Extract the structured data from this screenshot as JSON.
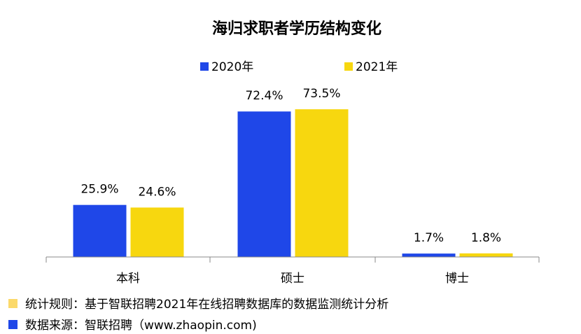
{
  "chart_data": {
    "type": "bar",
    "title": "海归求职者学历结构变化",
    "categories": [
      "本科",
      "硕士",
      "博士"
    ],
    "series": [
      {
        "name": "2020年",
        "color": "#1f47e8",
        "values": [
          25.9,
          72.4,
          1.7
        ],
        "labels": [
          "25.9%",
          "72.4%",
          "1.7%"
        ]
      },
      {
        "name": "2021年",
        "color": "#f7d70f",
        "values": [
          24.6,
          73.5,
          1.8
        ],
        "labels": [
          "24.6%",
          "73.5%",
          "1.8%"
        ]
      }
    ],
    "ylim": [
      0,
      80
    ],
    "grid": false,
    "legend_position": "top"
  },
  "footnotes": [
    {
      "text": "统计规则：基于智联招聘2021年在线招聘数据库的数据监测统计分析",
      "color": "#fbd96a"
    },
    {
      "text": "数据来源：智联招聘（www.zhaopin.com)",
      "color": "#1f47e8"
    }
  ]
}
